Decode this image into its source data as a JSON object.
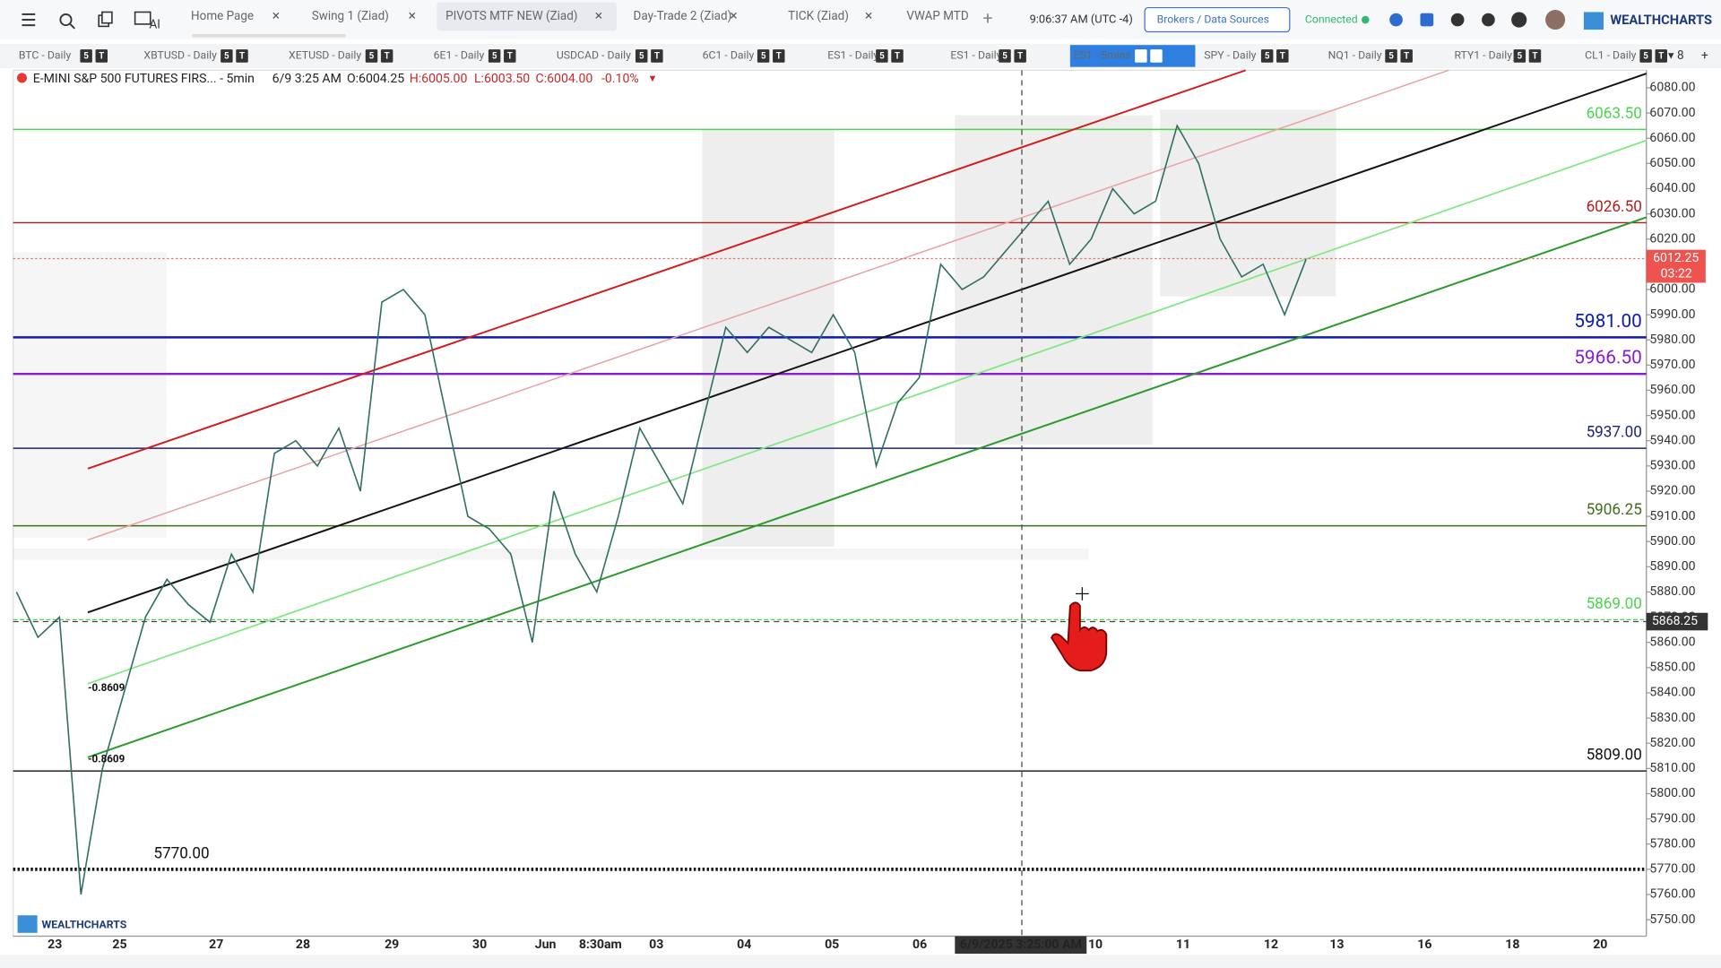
{
  "app": {
    "ai_label": "AI",
    "tabs": [
      "Home Page",
      "Swing 1 (Ziad)",
      "PIVOTS MTF NEW (Ziad)",
      "Day-Trade 2 (Ziad)",
      "TICK (Ziad)",
      "VWAP MTD"
    ],
    "clock": "9:06:37 AM  (UTC -4)",
    "brokers_button": "Brokers / Data Sources",
    "status": "Connected",
    "brand": "WEALTHCHARTS"
  },
  "symbols": {
    "tabs": [
      "BTC - Daily",
      "XBTUSD - Daily",
      "XETUSD - Daily",
      "6E1 - Daily",
      "USDCAD - Daily",
      "6C1 - Daily",
      "ES1 - Daily",
      "ES1 - Daily",
      "ES1 - 5mins",
      "SPY - Daily",
      "NQ1 - Daily",
      "RTY1 - Daily",
      "CL1 - Daily"
    ],
    "badges": [
      "5",
      "T"
    ],
    "overflow_count": "8"
  },
  "chart": {
    "title": "E-MINI S&P 500 FUTURES FIRS... - 5min",
    "bar_time": "6/9 3:25 AM",
    "open": "O:6004.25",
    "high": "H:6005.00",
    "low": "L:6003.50",
    "close": "C:6004.00",
    "change": "-0.10%",
    "ylim": [
      5750,
      6080
    ],
    "yticks": [
      {
        "value": 6080,
        "label": "6080.00"
      },
      {
        "value": 6070,
        "label": "6070.00"
      },
      {
        "value": 6060,
        "label": "6060.00"
      },
      {
        "value": 6050,
        "label": "6050.00"
      },
      {
        "value": 6040,
        "label": "6040.00"
      },
      {
        "value": 6030,
        "label": "6030.00"
      },
      {
        "value": 6020,
        "label": "6020.00"
      },
      {
        "value": 6010,
        "label": "6010.00"
      },
      {
        "value": 6000,
        "label": "6000.00"
      },
      {
        "value": 5990,
        "label": "5990.00"
      },
      {
        "value": 5980,
        "label": "5980.00"
      },
      {
        "value": 5970,
        "label": "5970.00"
      },
      {
        "value": 5960,
        "label": "5960.00"
      },
      {
        "value": 5950,
        "label": "5950.00"
      },
      {
        "value": 5940,
        "label": "5940.00"
      },
      {
        "value": 5930,
        "label": "5930.00"
      },
      {
        "value": 5920,
        "label": "5920.00"
      },
      {
        "value": 5910,
        "label": "5910.00"
      },
      {
        "value": 5900,
        "label": "5900.00"
      },
      {
        "value": 5890,
        "label": "5890.00"
      },
      {
        "value": 5880,
        "label": "5880.00"
      },
      {
        "value": 5870,
        "label": "5870.00"
      },
      {
        "value": 5860,
        "label": "5860.00"
      },
      {
        "value": 5850,
        "label": "5850.00"
      },
      {
        "value": 5840,
        "label": "5840.00"
      },
      {
        "value": 5830,
        "label": "5830.00"
      },
      {
        "value": 5820,
        "label": "5820.00"
      },
      {
        "value": 5810,
        "label": "5810.00"
      },
      {
        "value": 5800,
        "label": "5800.00"
      },
      {
        "value": 5790,
        "label": "5790.00"
      },
      {
        "value": 5780,
        "label": "5780.00"
      },
      {
        "value": 5770,
        "label": "5770.00"
      },
      {
        "value": 5760,
        "label": "5760.00"
      },
      {
        "value": 5750,
        "label": "5750.00"
      }
    ],
    "levels": [
      {
        "value": 6063.5,
        "label": "6063.50",
        "color": "#4cd44c",
        "style": "solid"
      },
      {
        "value": 6026.5,
        "label": "6026.50",
        "color": "#b71c1c",
        "style": "solid"
      },
      {
        "value": 5981,
        "label": "5981.00",
        "color": "#0d1ab8",
        "style": "bold"
      },
      {
        "value": 5966.5,
        "label": "5966.50",
        "color": "#8a1ccf",
        "style": "bold"
      },
      {
        "value": 5937,
        "label": "5937.00",
        "color": "#1a237e",
        "style": "solid"
      },
      {
        "value": 5906.25,
        "label": "5906.25",
        "color": "#3f6e1a",
        "style": "solid"
      },
      {
        "value": 5869,
        "label": "5869.00",
        "color": "#4cd44c",
        "style": "dashed"
      },
      {
        "value": 5809,
        "label": "5809.00",
        "color": "#111111",
        "style": "solid"
      },
      {
        "value": 5770,
        "label": "5770.00",
        "color": "#111111",
        "style": "dotted"
      }
    ],
    "last_price": {
      "value": 6012.25,
      "label": "6012.25",
      "countdown": "03:22"
    },
    "crosshair": {
      "value": 5868.25,
      "label": "5868.25"
    },
    "xlabels": [
      "23",
      "25",
      "27",
      "28",
      "29",
      "30",
      "Jun",
      "8:30am",
      "03",
      "04",
      "05",
      "06",
      "6/9/2025 3:25:00 AM",
      "10",
      "11",
      "12",
      "13",
      "16",
      "18",
      "20"
    ],
    "fib_labels": [
      "-0.8609",
      "-0.8609"
    ],
    "price_path": [
      5880,
      5862,
      5870,
      5760,
      5810,
      5840,
      5870,
      5885,
      5875,
      5868,
      5895,
      5880,
      5935,
      5940,
      5930,
      5945,
      5920,
      5995,
      6000,
      5990,
      5950,
      5910,
      5905,
      5895,
      5860,
      5920,
      5895,
      5880,
      5910,
      5945,
      5930,
      5915,
      5950,
      5985,
      5975,
      5985,
      5980,
      5975,
      5990,
      5975,
      5930,
      5955,
      5965,
      6010,
      6000,
      6005,
      6015,
      6025,
      6035,
      6010,
      6020,
      6040,
      6030,
      6035,
      6065,
      6050,
      6020,
      6005,
      6010,
      5990,
      6012
    ],
    "watermark": "WEALTHCHARTS"
  }
}
